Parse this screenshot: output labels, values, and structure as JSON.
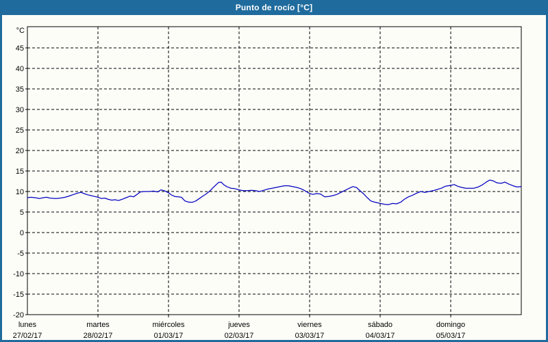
{
  "title": "Punto de rocío [°C]",
  "colors": {
    "titlebar_bg": "#1f6b9d",
    "window_border": "#1f6b9d",
    "title_text": "#ffffff",
    "background": "#fdfdf8",
    "axis": "#000000",
    "line": "#0000c0"
  },
  "chart_data": {
    "type": "line",
    "title": "Punto de rocío [°C]",
    "y_unit": "°C",
    "ylim": [
      -20,
      50
    ],
    "y_ticks": [
      45,
      40,
      35,
      30,
      25,
      20,
      15,
      10,
      5,
      0,
      -5,
      -10,
      -15,
      -20
    ],
    "grid": "dashed",
    "legend": "none",
    "x_range_hours": [
      0,
      168
    ],
    "x_days": [
      {
        "name": "lunes",
        "date": "27/02/17"
      },
      {
        "name": "martes",
        "date": "28/02/17"
      },
      {
        "name": "miércoles",
        "date": "01/03/17"
      },
      {
        "name": "jueves",
        "date": "02/03/17"
      },
      {
        "name": "viernes",
        "date": "03/03/17"
      },
      {
        "name": "sábado",
        "date": "04/03/17"
      },
      {
        "name": "domingo",
        "date": "05/03/17"
      }
    ],
    "series": [
      {
        "name": "Punto de rocío",
        "color": "#0000c0",
        "points": [
          [
            0,
            8.5
          ],
          [
            1.2,
            8.6
          ],
          [
            2.6,
            8.5
          ],
          [
            4.2,
            8.3
          ],
          [
            5.4,
            8.5
          ],
          [
            6.5,
            8.6
          ],
          [
            7.7,
            8.4
          ],
          [
            9.6,
            8.3
          ],
          [
            11.2,
            8.4
          ],
          [
            12.8,
            8.6
          ],
          [
            14.2,
            8.9
          ],
          [
            15.8,
            9.3
          ],
          [
            17,
            9.6
          ],
          [
            18.2,
            9.8
          ],
          [
            19.3,
            9.5
          ],
          [
            20.5,
            9.2
          ],
          [
            21.7,
            9
          ],
          [
            22.8,
            8.8
          ],
          [
            24,
            8.6
          ],
          [
            25.2,
            8.3
          ],
          [
            26.3,
            8.4
          ],
          [
            27.5,
            8.1
          ],
          [
            28.7,
            7.9
          ],
          [
            29.8,
            8
          ],
          [
            31,
            7.8
          ],
          [
            32.2,
            8.1
          ],
          [
            33.6,
            8.5
          ],
          [
            35,
            8.9
          ],
          [
            36.1,
            8.7
          ],
          [
            37.3,
            9.3
          ],
          [
            38.4,
            9.9
          ],
          [
            39.8,
            10
          ],
          [
            41.5,
            10
          ],
          [
            42.9,
            10.1
          ],
          [
            44.3,
            9.9
          ],
          [
            45.4,
            10.4
          ],
          [
            46.6,
            10.2
          ],
          [
            48,
            9.7
          ],
          [
            48.9,
            9.2
          ],
          [
            50.1,
            8.8
          ],
          [
            51.3,
            8.7
          ],
          [
            52.4,
            8.6
          ],
          [
            53.6,
            7.7
          ],
          [
            55,
            7.4
          ],
          [
            56.2,
            7.4
          ],
          [
            57.3,
            7.7
          ],
          [
            58.5,
            8.3
          ],
          [
            59.7,
            8.9
          ],
          [
            60.8,
            9.4
          ],
          [
            62,
            10.1
          ],
          [
            63.1,
            10.9
          ],
          [
            64.1,
            11.6
          ],
          [
            65,
            12.2
          ],
          [
            65.9,
            12.3
          ],
          [
            66.9,
            11.6
          ],
          [
            67.8,
            11.2
          ],
          [
            69.2,
            10.8
          ],
          [
            70.6,
            10.7
          ],
          [
            72,
            10.4
          ],
          [
            73.4,
            10.2
          ],
          [
            74.8,
            10.2
          ],
          [
            76.2,
            10.3
          ],
          [
            77.6,
            10.2
          ],
          [
            79,
            10
          ],
          [
            80.4,
            10.3
          ],
          [
            81.8,
            10.6
          ],
          [
            83.2,
            10.8
          ],
          [
            84.6,
            11
          ],
          [
            86,
            11.2
          ],
          [
            87.4,
            11.4
          ],
          [
            88.8,
            11.4
          ],
          [
            90.2,
            11.2
          ],
          [
            91.6,
            11
          ],
          [
            93,
            10.7
          ],
          [
            94.4,
            10.2
          ],
          [
            96,
            9.5
          ],
          [
            97.2,
            9.3
          ],
          [
            98.3,
            9.5
          ],
          [
            99.7,
            9.4
          ],
          [
            101.1,
            8.7
          ],
          [
            102.5,
            8.8
          ],
          [
            103.9,
            9
          ],
          [
            105.3,
            9.3
          ],
          [
            106.7,
            9.8
          ],
          [
            108.1,
            10.3
          ],
          [
            109.5,
            10.8
          ],
          [
            110.7,
            11.2
          ],
          [
            111.9,
            11
          ],
          [
            113.3,
            10.1
          ],
          [
            114.4,
            9.4
          ],
          [
            115.6,
            8.5
          ],
          [
            116.8,
            7.7
          ],
          [
            118.2,
            7.4
          ],
          [
            120,
            7.1
          ],
          [
            121.4,
            6.9
          ],
          [
            122.8,
            6.8
          ],
          [
            124.2,
            7.1
          ],
          [
            125.6,
            7
          ],
          [
            127,
            7.4
          ],
          [
            128.2,
            8.1
          ],
          [
            129.6,
            8.7
          ],
          [
            131,
            9.1
          ],
          [
            132.4,
            9.6
          ],
          [
            133.8,
            10
          ],
          [
            135.2,
            9.8
          ],
          [
            136.6,
            10
          ],
          [
            138,
            10.2
          ],
          [
            139.4,
            10.5
          ],
          [
            140.8,
            10.8
          ],
          [
            142.2,
            11.3
          ],
          [
            144,
            11.5
          ],
          [
            145.2,
            11.7
          ],
          [
            146.3,
            11.3
          ],
          [
            147.7,
            11
          ],
          [
            149.1,
            10.8
          ],
          [
            150.5,
            10.8
          ],
          [
            151.9,
            10.8
          ],
          [
            153.3,
            11.1
          ],
          [
            154.7,
            11.6
          ],
          [
            156.1,
            12.3
          ],
          [
            157.3,
            12.8
          ],
          [
            158.4,
            12.6
          ],
          [
            159.8,
            12.1
          ],
          [
            161.2,
            12
          ],
          [
            162.4,
            12.3
          ],
          [
            163.8,
            11.8
          ],
          [
            165.2,
            11.4
          ],
          [
            166.6,
            11.1
          ],
          [
            168,
            11.2
          ]
        ]
      }
    ]
  }
}
